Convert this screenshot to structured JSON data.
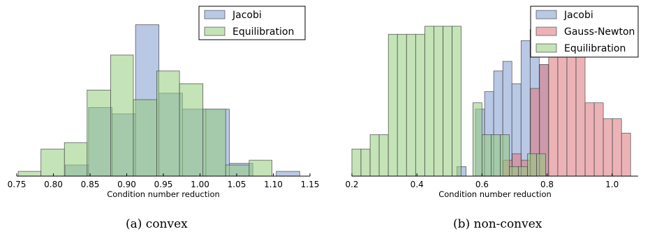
{
  "colors": {
    "jacobi": "#7f9bd0",
    "gauss_newton": "#dc747c",
    "equilibration": "#94cc7c",
    "edge": "#4a4a4a"
  },
  "captions": [
    "(a)  convex",
    "(b)  non-convex"
  ],
  "chart_data": [
    {
      "type": "histogram",
      "xlabel": "Condition number reduction",
      "ylabel": "",
      "xlim": [
        0.75,
        1.15
      ],
      "xticks": [
        "0.75",
        "0.80",
        "0.85",
        "0.90",
        "0.95",
        "1.00",
        "1.05",
        "1.10",
        "1.15"
      ],
      "xtick_values": [
        0.75,
        0.8,
        0.85,
        0.9,
        0.95,
        1.0,
        1.05,
        1.1,
        1.15
      ],
      "ymax": 10,
      "legend_position": "top-right",
      "series": [
        {
          "name": "Jacobi",
          "color_key": "jacobi",
          "bins": [
            {
              "x0": 0.816,
              "x1": 0.848,
              "count": 0.7
            },
            {
              "x0": 0.848,
              "x1": 0.88,
              "count": 4.3
            },
            {
              "x0": 0.88,
              "x1": 0.912,
              "count": 3.9
            },
            {
              "x0": 0.912,
              "x1": 0.944,
              "count": 9.5
            },
            {
              "x0": 0.944,
              "x1": 0.976,
              "count": 5.2
            },
            {
              "x0": 0.976,
              "x1": 1.008,
              "count": 4.2
            },
            {
              "x0": 1.008,
              "x1": 1.04,
              "count": 4.2
            },
            {
              "x0": 1.04,
              "x1": 1.072,
              "count": 0.8
            },
            {
              "x0": 1.104,
              "x1": 1.136,
              "count": 0.3
            }
          ]
        },
        {
          "name": "Equilibration",
          "color_key": "equilibration",
          "bins": [
            {
              "x0": 0.752,
              "x1": 0.783,
              "count": 0.3
            },
            {
              "x0": 0.783,
              "x1": 0.815,
              "count": 1.7
            },
            {
              "x0": 0.815,
              "x1": 0.846,
              "count": 2.1
            },
            {
              "x0": 0.846,
              "x1": 0.878,
              "count": 5.4
            },
            {
              "x0": 0.878,
              "x1": 0.909,
              "count": 7.6
            },
            {
              "x0": 0.909,
              "x1": 0.941,
              "count": 4.8
            },
            {
              "x0": 0.941,
              "x1": 0.972,
              "count": 6.6
            },
            {
              "x0": 0.972,
              "x1": 1.004,
              "count": 5.8
            },
            {
              "x0": 1.004,
              "x1": 1.035,
              "count": 4.2
            },
            {
              "x0": 1.035,
              "x1": 1.067,
              "count": 0.7
            },
            {
              "x0": 1.067,
              "x1": 1.098,
              "count": 1.0
            }
          ]
        }
      ]
    },
    {
      "type": "histogram",
      "xlabel": "Condition number reduction",
      "ylabel": "",
      "xlim": [
        0.2,
        1.08
      ],
      "xticks": [
        "0.2",
        "0.4",
        "0.6",
        "0.8",
        "1.0"
      ],
      "xtick_values": [
        0.2,
        0.4,
        0.6,
        0.8,
        1.0
      ],
      "ymax": 10,
      "legend_position": "top-right",
      "series": [
        {
          "name": "Jacobi",
          "color_key": "jacobi",
          "bins": [
            {
              "x0": 0.523,
              "x1": 0.551,
              "count": 0.6
            },
            {
              "x0": 0.58,
              "x1": 0.608,
              "count": 4.2
            },
            {
              "x0": 0.608,
              "x1": 0.636,
              "count": 5.3
            },
            {
              "x0": 0.636,
              "x1": 0.664,
              "count": 6.6
            },
            {
              "x0": 0.664,
              "x1": 0.692,
              "count": 7.2
            },
            {
              "x0": 0.692,
              "x1": 0.72,
              "count": 5.8
            },
            {
              "x0": 0.72,
              "x1": 0.748,
              "count": 8.5
            },
            {
              "x0": 0.748,
              "x1": 0.776,
              "count": 9.2
            },
            {
              "x0": 0.776,
              "x1": 0.804,
              "count": 7.0
            }
          ]
        },
        {
          "name": "Gauss-Newton",
          "color_key": "gauss_newton",
          "bins": [
            {
              "x0": 0.665,
              "x1": 0.693,
              "count": 1.0
            },
            {
              "x0": 0.693,
              "x1": 0.721,
              "count": 1.4
            },
            {
              "x0": 0.721,
              "x1": 0.749,
              "count": 1.0
            },
            {
              "x0": 0.749,
              "x1": 0.777,
              "count": 5.5
            },
            {
              "x0": 0.777,
              "x1": 0.805,
              "count": 7.0
            },
            {
              "x0": 0.805,
              "x1": 0.833,
              "count": 9.8
            },
            {
              "x0": 0.833,
              "x1": 0.861,
              "count": 8.5
            },
            {
              "x0": 0.861,
              "x1": 0.889,
              "count": 8.5
            },
            {
              "x0": 0.889,
              "x1": 0.917,
              "count": 8.2
            },
            {
              "x0": 0.917,
              "x1": 0.945,
              "count": 4.6
            },
            {
              "x0": 0.945,
              "x1": 0.973,
              "count": 4.6
            },
            {
              "x0": 0.973,
              "x1": 1.001,
              "count": 3.6
            },
            {
              "x0": 1.001,
              "x1": 1.029,
              "count": 3.6
            },
            {
              "x0": 1.029,
              "x1": 1.057,
              "count": 2.7
            }
          ]
        },
        {
          "name": "Equilibration",
          "color_key": "equilibration",
          "bins": [
            {
              "x0": 0.2,
              "x1": 0.228,
              "count": 1.7
            },
            {
              "x0": 0.228,
              "x1": 0.256,
              "count": 1.7
            },
            {
              "x0": 0.256,
              "x1": 0.284,
              "count": 2.6
            },
            {
              "x0": 0.284,
              "x1": 0.312,
              "count": 2.6
            },
            {
              "x0": 0.312,
              "x1": 0.34,
              "count": 8.9
            },
            {
              "x0": 0.34,
              "x1": 0.368,
              "count": 8.9
            },
            {
              "x0": 0.368,
              "x1": 0.396,
              "count": 8.9
            },
            {
              "x0": 0.396,
              "x1": 0.424,
              "count": 8.9
            },
            {
              "x0": 0.424,
              "x1": 0.452,
              "count": 9.4
            },
            {
              "x0": 0.452,
              "x1": 0.48,
              "count": 9.4
            },
            {
              "x0": 0.48,
              "x1": 0.508,
              "count": 9.4
            },
            {
              "x0": 0.508,
              "x1": 0.536,
              "count": 9.4
            },
            {
              "x0": 0.572,
              "x1": 0.6,
              "count": 4.6
            },
            {
              "x0": 0.6,
              "x1": 0.628,
              "count": 2.6
            },
            {
              "x0": 0.628,
              "x1": 0.656,
              "count": 2.6
            },
            {
              "x0": 0.656,
              "x1": 0.684,
              "count": 2.6
            },
            {
              "x0": 0.684,
              "x1": 0.712,
              "count": 0.6
            },
            {
              "x0": 0.712,
              "x1": 0.74,
              "count": 0.6
            },
            {
              "x0": 0.74,
              "x1": 0.768,
              "count": 1.4
            },
            {
              "x0": 0.768,
              "x1": 0.796,
              "count": 1.4
            }
          ]
        }
      ]
    }
  ]
}
